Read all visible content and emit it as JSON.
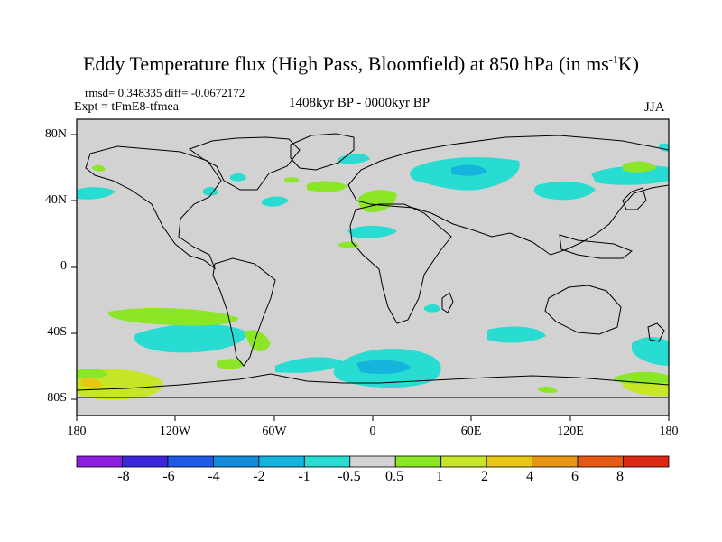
{
  "title": "Eddy Temperature flux (High Pass, Bloomfield) at 850 hPa (in ms",
  "title_sup": "-1",
  "title_end": "K)",
  "stats": "rmsd= 0.348335  diff= -0.0672172",
  "experiment": "Expt = tFmE8-tfmea",
  "period": "1408kyr BP - 0000kyr BP",
  "season": "JJA",
  "y_ticks": [
    "80N",
    "40N",
    "0",
    "40S",
    "80S"
  ],
  "x_ticks": [
    "180",
    "120W",
    "60W",
    "0",
    "60E",
    "120E",
    "180"
  ],
  "colorbar": {
    "labels": [
      "-8",
      "-6",
      "-4",
      "-2",
      "-1",
      "-0.5",
      "0.5",
      "1",
      "2",
      "4",
      "6",
      "8"
    ],
    "colors": [
      "#8c1ee0",
      "#3c28dc",
      "#1e5ae6",
      "#148cdc",
      "#14b4dc",
      "#28dcd2",
      "#d2d2d2",
      "#8ce628",
      "#c8e628",
      "#e6c814",
      "#e69614",
      "#e65a14",
      "#dc2814"
    ]
  },
  "map_colors": {
    "background": "#d2d2d2",
    "coast": "#000000"
  }
}
